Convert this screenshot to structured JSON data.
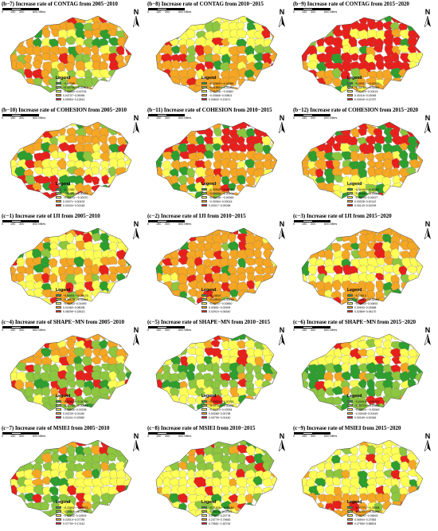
{
  "legend_title": "Legend",
  "north_label": "N",
  "scale_labels": [
    "0",
    "150",
    "300",
    "600 Miles"
  ],
  "panels": [
    {
      "title": "(b−7) Increase rate of CONTAG from 2005−2010",
      "colors": [
        "#2e9e2e",
        "#8dc63f",
        "#ffff55",
        "#f5a623",
        "#e8201c"
      ],
      "legend": [
        "−0.40798",
        "−0.40798~−0.02964",
        "−0.02963~0.00706",
        "0.00707~0.05955",
        "0.05954~0.12810"
      ]
    },
    {
      "title": "(b−8) Increase rate of CONTAG from 2010−2015",
      "colors": [
        "#2e9e2e",
        "#8dc63f",
        "#ffff55",
        "#f5a623",
        "#e8201c"
      ],
      "legend": [
        "−0.02669~−0.01884",
        "−0.01883~−0.01259",
        "−0.01258~−0.00667",
        "−0.00666~0.00801",
        "0.00802~0.13571"
      ]
    },
    {
      "title": "(b−9) Increase rate of CONTAG from 2015−2020",
      "colors": [
        "#2e9e2e",
        "#8dc63f",
        "#ffff55",
        "#f5a623",
        "#e8201c"
      ],
      "legend": [
        "−0.05017~−0.02755",
        "−0.02754~−0.01021",
        "−0.01020~0.00415",
        "0.00416~0.03948",
        "0.03949~0.13757"
      ]
    },
    {
      "title": "(b−10) Increase rate of COHESION from 2005−2010",
      "colors": [
        "#2e9e2e",
        "#8dc63f",
        "#ffff55",
        "#f5a623",
        "#e8201c"
      ],
      "legend": [
        "−0.01082",
        "−0.01081~−0.00124",
        "−0.00123~−0.00070",
        "0.00071~0.00433",
        "0.00434~0.01448"
      ]
    },
    {
      "title": "(b−11) Increase rate of COHESION from 2010−2015",
      "colors": [
        "#2e9e2e",
        "#8dc63f",
        "#ffff55",
        "#f5a623",
        "#e8201c"
      ],
      "legend": [
        "−0.00509~−0.00445",
        "−0.00444~−0.00109",
        "−0.00108~−0.00065",
        "−0.00064~0.00016",
        "0.00017~0.00096"
      ]
    },
    {
      "title": "(b−12) Increase rate of COHESION from 2015−2020",
      "colors": [
        "#2e9e2e",
        "#8dc63f",
        "#ffff55",
        "#f5a623",
        "#e8201c"
      ],
      "legend": [
        "−0.00490~−0.00342",
        "−0.00341~−0.00091",
        "−0.00090~0.00027",
        "0.00028~0.00142",
        "0.00143~0.00299"
      ]
    },
    {
      "title": "(c−1) Increase rate of IJI from 2005−2010",
      "colors": [
        "#2e9e2e",
        "#8dc63f",
        "#ffff55",
        "#f5a623",
        "#e8201c"
      ],
      "legend": [
        "−0.64901~−0.35179",
        "−0.35178~−0.05364",
        "−0.05363~0.01959",
        "0.01960~0.08098",
        "0.08099~0.18513"
      ]
    },
    {
      "title": "(c−2) Increase rate of IJI from 2010−2015",
      "colors": [
        "#2e9e2e",
        "#8dc63f",
        "#ffff55",
        "#f5a623",
        "#e8201c"
      ],
      "legend": [
        "−0.14643",
        "−0.14642~−0.00728",
        "−0.00727~0.00850",
        "0.00851~0.02909",
        "0.02910~0.06340"
      ]
    },
    {
      "title": "(c−3) Increase rate of IJI from 2015−2020",
      "colors": [
        "#2e9e2e",
        "#8dc63f",
        "#ffff55",
        "#f5a623",
        "#e8201c"
      ],
      "legend": [
        "−0.14813",
        "−0.14812~−0.02941",
        "−0.02940~0.00692",
        "0.00693~0.02868",
        "0.02869~0.06170"
      ]
    },
    {
      "title": "(c−4) Increase rate of SHAPE−MN from 2005−2010",
      "colors": [
        "#2e9e2e",
        "#8dc63f",
        "#ffff55",
        "#f5a623",
        "#e8201c"
      ],
      "legend": [
        "−0.02616~−0.01760",
        "−0.01759~−0.00646",
        "−0.00645~0.00238",
        "0.00239~0.01160",
        "0.01161~0.02580"
      ]
    },
    {
      "title": "(c−5) Increase rate of SHAPE−MN from 2010−2015",
      "colors": [
        "#2e9e2e",
        "#8dc63f",
        "#ffff55",
        "#f5a623",
        "#e8201c"
      ],
      "legend": [
        "−0.02024~−0.00763",
        "−0.00762~−0.00225",
        "−0.00224~0.00284",
        "0.00285~0.00798",
        "0.00799~0.01440"
      ]
    },
    {
      "title": "(c−6) Increase rate of SHAPE−MN from 2015−2020",
      "colors": [
        "#2e9e2e",
        "#8dc63f",
        "#ffff55",
        "#f5a623",
        "#e8201c"
      ],
      "legend": [
        "−0.00918~−0.00721",
        "−0.00720~−0.00525",
        "−0.00524~−0.00049",
        "−0.00048~0.00169",
        "0.00169~0.00346"
      ]
    },
    {
      "title": "(c−7) Increase rate of MSIEI from 2005−2010",
      "colors": [
        "#2e9e2e",
        "#8dc63f",
        "#ffff55",
        "#f5a623",
        "#e8201c"
      ],
      "legend": [
        "−0.33662~−0.19876",
        "−0.19875~−0.07833",
        "−0.07832~0.02509",
        "0.02510~0.07789",
        "0.07790~0.17442"
      ]
    },
    {
      "title": "(c−8) Increase rate of MSIEI from 2010−2015",
      "colors": [
        "#2e9e2e",
        "#8dc63f",
        "#ffff55",
        "#f5a623",
        "#e8201c"
      ],
      "legend": [
        "−0.21835~−0.05146",
        "−0.05145~0.07003",
        "0.07004~0.23778",
        "0.23779~0.79660",
        "0.79661~1.63734"
      ]
    },
    {
      "title": "(c−9) Increase rate of MSIEI from 2015−2020",
      "colors": [
        "#2e9e2e",
        "#8dc63f",
        "#ffff55",
        "#f5a623",
        "#e8201c"
      ],
      "legend": [
        "−0.47771~−0.31008",
        "−0.31007~−0.06299",
        "−0.06297~0.06593",
        "0.06594~0.27583",
        "0.27584~0.68824"
      ]
    }
  ],
  "dominant_fill": [
    [
      3,
      3,
      1
    ],
    [
      2,
      3,
      3
    ],
    [
      4,
      4,
      3
    ],
    [
      3,
      2,
      4
    ],
    [
      4,
      3,
      3
    ],
    [
      4,
      3,
      2
    ],
    [
      2,
      3,
      2
    ],
    [
      3,
      3,
      3
    ],
    [
      3,
      2,
      3
    ],
    [
      3,
      1,
      1
    ],
    [
      2,
      1,
      2
    ],
    [
      2,
      0,
      1
    ],
    [
      1,
      2,
      1
    ],
    [
      1,
      2,
      2
    ],
    [
      2,
      2,
      3
    ]
  ]
}
